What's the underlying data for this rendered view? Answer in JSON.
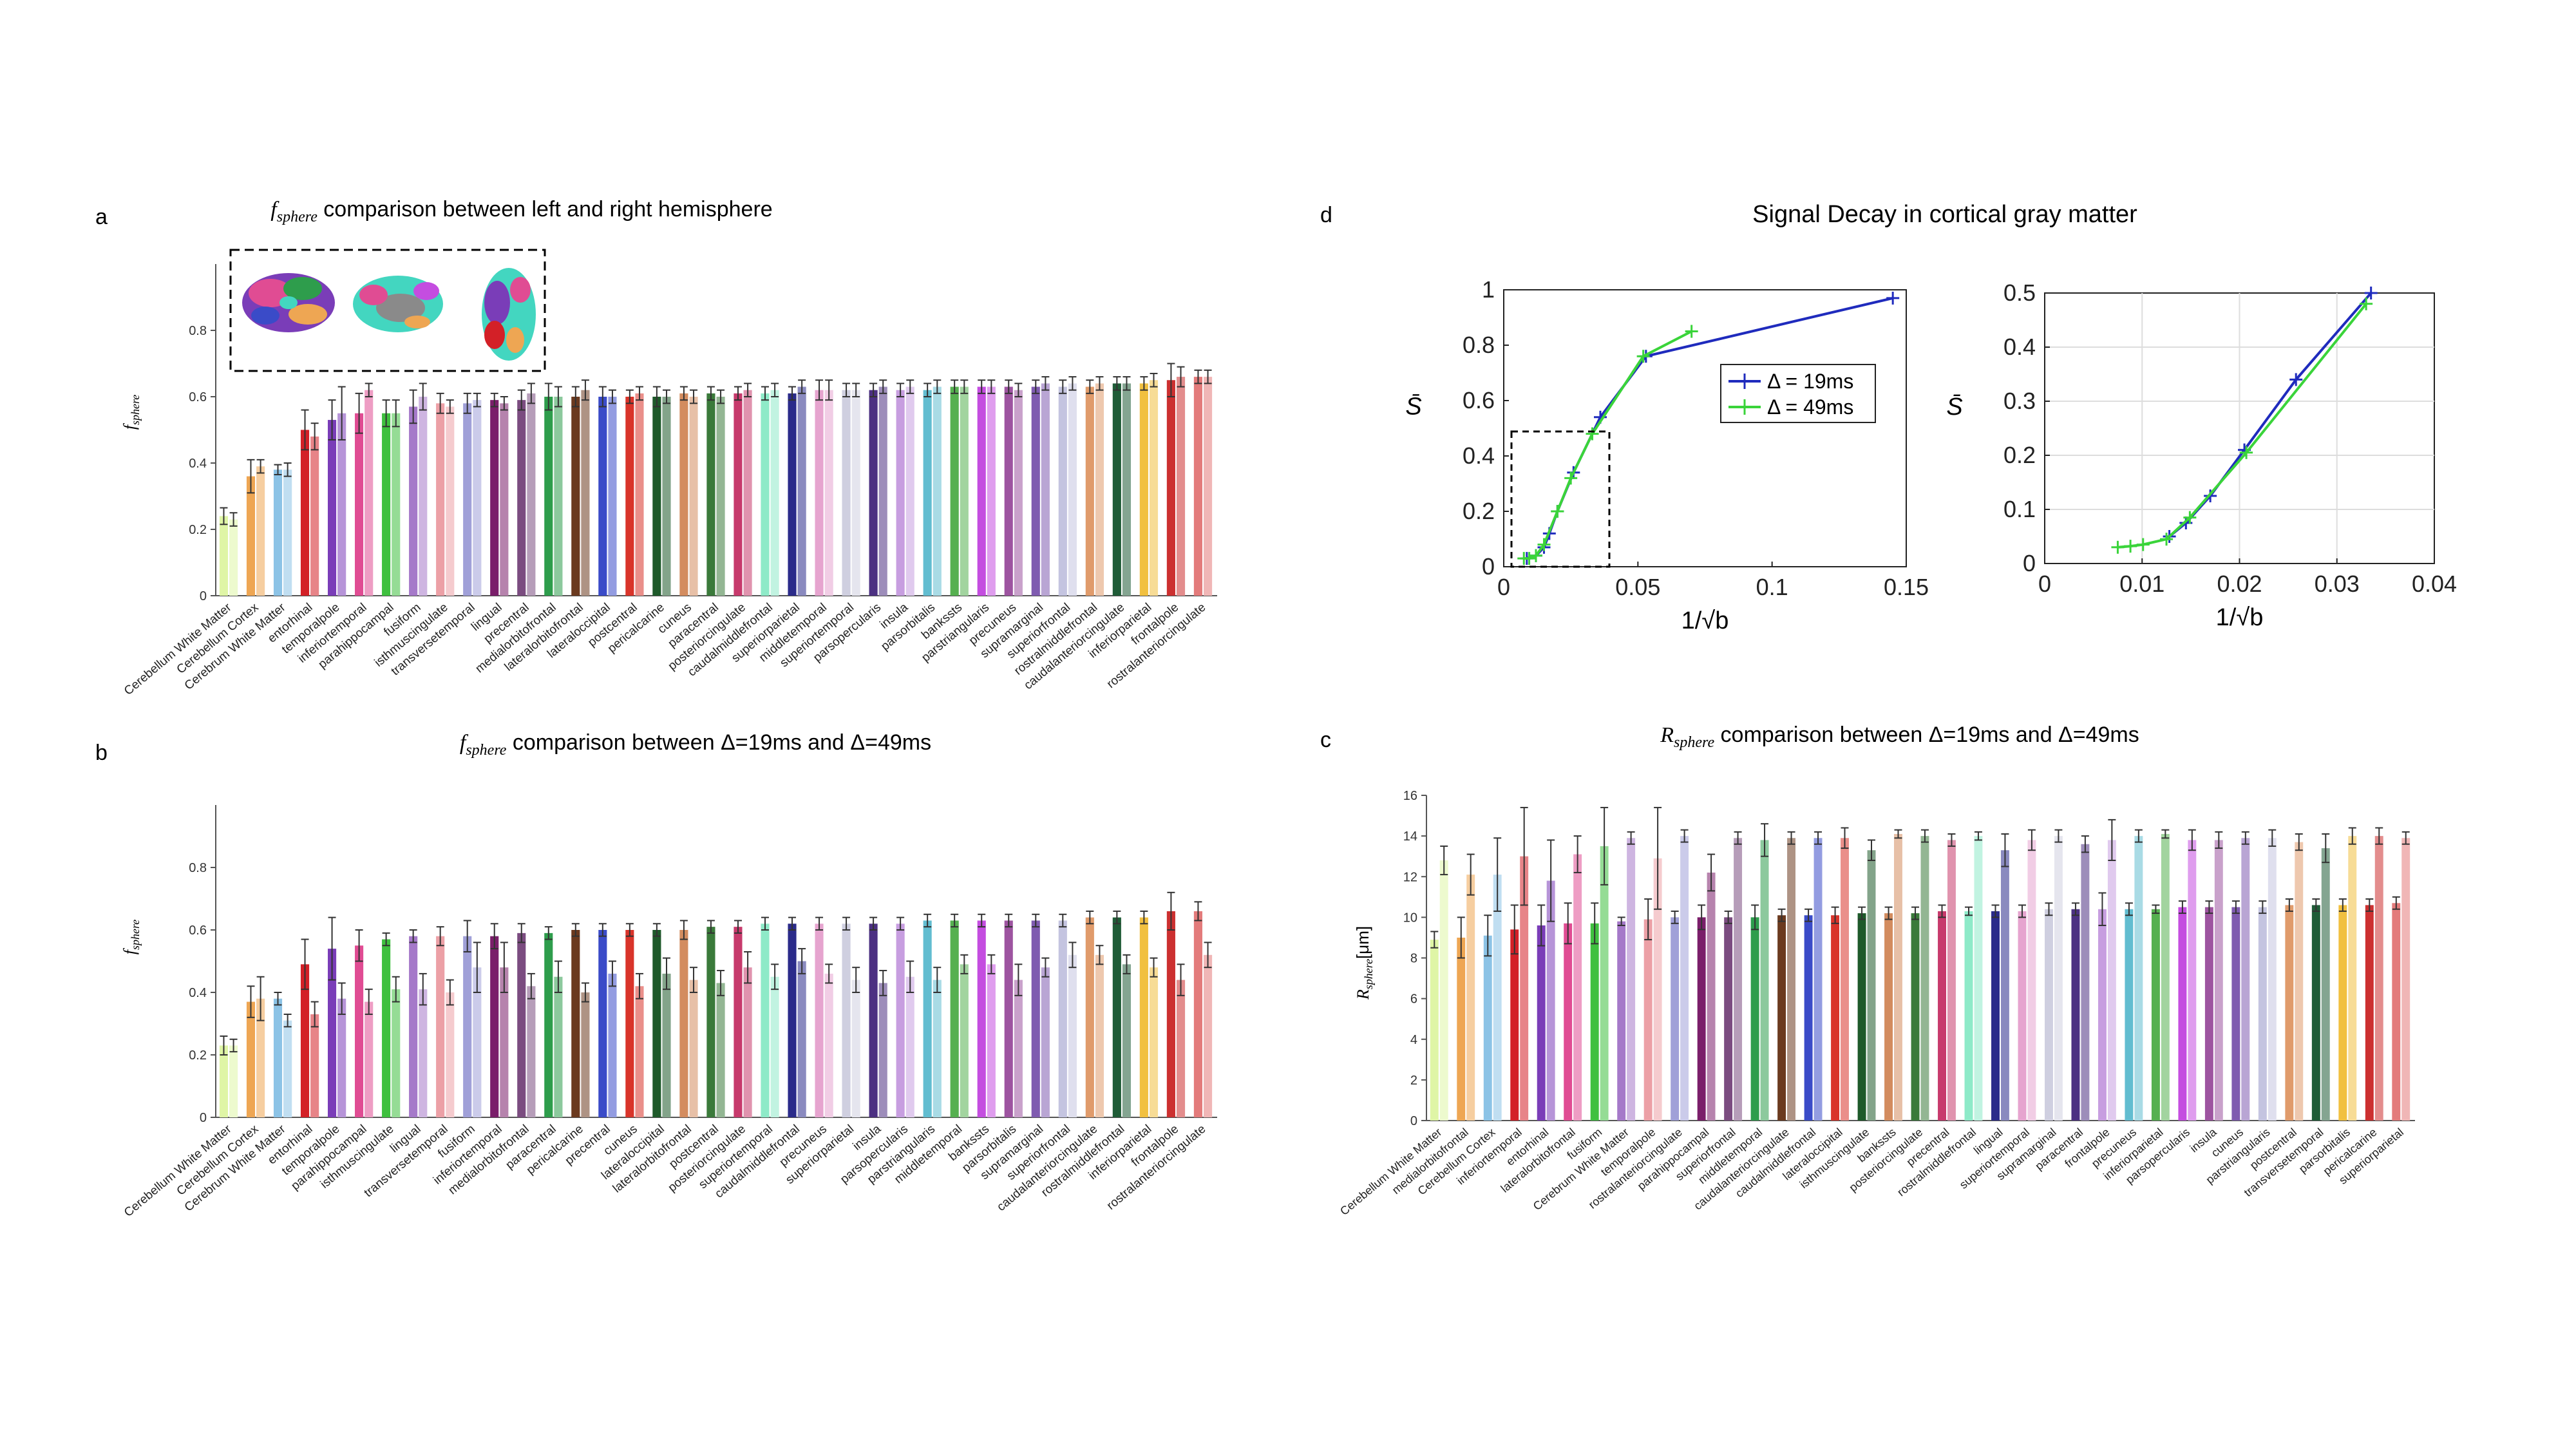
{
  "palette": [
    "#dff5a6",
    "#eea653",
    "#8cc3e6",
    "#d32027",
    "#7a3db8",
    "#e04c93",
    "#3fc03f",
    "#a579c9",
    "#eca0a6",
    "#a0a0d8",
    "#7a1e6a",
    "#7b4c80",
    "#2e9d4c",
    "#6b3a1f",
    "#3a4bc8",
    "#d9342a",
    "#1e5a2a",
    "#d38c5f",
    "#3a7a3a",
    "#c73a6c",
    "#8eeac8",
    "#2b2b8a",
    "#e6a4cf",
    "#cfcfe0",
    "#4c3082",
    "#c79ee0",
    "#62bdd0",
    "#56b050",
    "#c44de0",
    "#9d54a0",
    "#7f5bb0",
    "#c4c4e0",
    "#e09b6b",
    "#1f5c37",
    "#f1c040",
    "#cc3030",
    "#e37b7b",
    "#6d5f3f",
    "#43d6c0",
    "#7c2a88",
    "#e070d0",
    "#5a2b8a"
  ],
  "panel_a": {
    "panel_label": "a",
    "title_sym": "f",
    "title_sub": "sphere",
    "title_rest": " comparison between left and right hemisphere",
    "ylabel_sym": "f",
    "ylabel_sub": "sphere"
  },
  "panel_b": {
    "panel_label": "b",
    "title_sym": "f",
    "title_sub": "sphere",
    "title_rest": " comparison between Δ=19ms and Δ=49ms",
    "ylabel_sym": "f",
    "ylabel_sub": "sphere"
  },
  "panel_c": {
    "panel_label": "c",
    "title_sym": "R",
    "title_sub": "sphere",
    "title_rest": " comparison between Δ=19ms and Δ=49ms",
    "ylabel_sym": "R",
    "ylabel_sub": "sphere",
    "ylabel_unit": "[μm]"
  },
  "panel_d": {
    "panel_label": "d",
    "title": "Signal Decay in cortical gray matter",
    "ylabel": "S̄",
    "xlabel": "1/√b",
    "legend": [
      "Δ = 19ms",
      "Δ = 49ms"
    ],
    "series_colors": [
      "#1f2bbd",
      "#3ad43a"
    ]
  },
  "chart_data": [
    {
      "type": "bar",
      "panel": "a",
      "ylim": [
        0,
        1
      ],
      "yticks": [
        "0",
        "0.2",
        "0.4",
        "0.6",
        "0.8"
      ],
      "grouped": true,
      "categories": [
        "Cerebellum White Matter",
        "Cerebellum Cortex",
        "Cerebrum White Matter",
        "entorhinal",
        "temporalpole",
        "inferiortemporal",
        "parahippocampal",
        "fusiform",
        "isthmuscingulate",
        "transversetemporal",
        "lingual",
        "precentral",
        "medialorbitofrontal",
        "lateralorbitofrontal",
        "lateraloccipital",
        "postcentral",
        "pericalcarine",
        "cuneus",
        "paracentral",
        "posteriorcingulate",
        "caudalmiddlefrontal",
        "superiorparietal",
        "middletemporal",
        "superiortemporal",
        "parsopercularis",
        "insula",
        "parsorbitalis",
        "bankssts",
        "parstriangularis",
        "precuneus",
        "supramarginal",
        "superiorfrontal",
        "rostralmiddlefrontal",
        "caudalanteriorcingulate",
        "inferiorparietal",
        "frontalpole",
        "rostralanteriorcingulate"
      ],
      "series": [
        {
          "values": [
            0.24,
            0.36,
            0.38,
            0.5,
            0.53,
            0.55,
            0.55,
            0.57,
            0.58,
            0.58,
            0.59,
            0.59,
            0.6,
            0.6,
            0.6,
            0.6,
            0.6,
            0.61,
            0.61,
            0.61,
            0.61,
            0.61,
            0.62,
            0.62,
            0.62,
            0.62,
            0.62,
            0.63,
            0.63,
            0.63,
            0.63,
            0.63,
            0.63,
            0.64,
            0.64,
            0.65,
            0.66
          ],
          "errors": [
            0.025,
            0.05,
            0.015,
            0.06,
            0.06,
            0.06,
            0.04,
            0.05,
            0.03,
            0.03,
            0.02,
            0.03,
            0.04,
            0.03,
            0.03,
            0.02,
            0.03,
            0.02,
            0.02,
            0.02,
            0.02,
            0.02,
            0.03,
            0.02,
            0.02,
            0.02,
            0.02,
            0.02,
            0.02,
            0.02,
            0.02,
            0.02,
            0.02,
            0.02,
            0.02,
            0.05,
            0.02
          ]
        },
        {
          "values": [
            0.23,
            0.39,
            0.38,
            0.48,
            0.55,
            0.62,
            0.55,
            0.6,
            0.57,
            0.59,
            0.58,
            0.61,
            0.6,
            0.62,
            0.6,
            0.61,
            0.6,
            0.6,
            0.6,
            0.62,
            0.62,
            0.63,
            0.62,
            0.62,
            0.63,
            0.63,
            0.63,
            0.63,
            0.63,
            0.62,
            0.64,
            0.64,
            0.64,
            0.64,
            0.65,
            0.66,
            0.66
          ],
          "errors": [
            0.02,
            0.02,
            0.02,
            0.04,
            0.08,
            0.02,
            0.04,
            0.04,
            0.02,
            0.02,
            0.02,
            0.03,
            0.03,
            0.03,
            0.02,
            0.02,
            0.02,
            0.02,
            0.02,
            0.02,
            0.02,
            0.02,
            0.03,
            0.02,
            0.02,
            0.02,
            0.02,
            0.02,
            0.02,
            0.02,
            0.02,
            0.02,
            0.02,
            0.02,
            0.02,
            0.03,
            0.02
          ]
        }
      ]
    },
    {
      "type": "bar",
      "panel": "b",
      "ylim": [
        0,
        1
      ],
      "yticks": [
        "0",
        "0.2",
        "0.4",
        "0.6",
        "0.8"
      ],
      "grouped": true,
      "categories": [
        "Cerebellum White Matter",
        "Cerebellum Cortex",
        "Cerebrum White Matter",
        "entorhinal",
        "temporalpole",
        "parahippocampal",
        "isthmuscingulate",
        "lingual",
        "transversetemporal",
        "fusiform",
        "inferiortemporal",
        "medialorbitofrontal",
        "paracentral",
        "pericalcarine",
        "precentral",
        "cuneus",
        "lateraloccipital",
        "lateralorbitofrontal",
        "postcentral",
        "posteriorcingulate",
        "superiortemporal",
        "caudalmiddlefrontal",
        "precuneus",
        "superiorparietal",
        "insula",
        "parsopercularis",
        "parstriangularis",
        "middletemporal",
        "bankssts",
        "parsorbitalis",
        "supramarginal",
        "superiorfrontal",
        "caudalanteriorcingulate",
        "rostralmiddlefrontal",
        "inferiorparietal",
        "frontalpole",
        "rostralanteriorcingulate"
      ],
      "series": [
        {
          "values": [
            0.23,
            0.37,
            0.38,
            0.49,
            0.54,
            0.55,
            0.57,
            0.58,
            0.58,
            0.58,
            0.58,
            0.59,
            0.59,
            0.6,
            0.6,
            0.6,
            0.6,
            0.6,
            0.61,
            0.61,
            0.62,
            0.62,
            0.62,
            0.62,
            0.62,
            0.62,
            0.63,
            0.63,
            0.63,
            0.63,
            0.63,
            0.63,
            0.64,
            0.64,
            0.64,
            0.66,
            0.66
          ],
          "errors": [
            0.03,
            0.05,
            0.02,
            0.08,
            0.1,
            0.05,
            0.02,
            0.02,
            0.03,
            0.05,
            0.04,
            0.03,
            0.02,
            0.02,
            0.02,
            0.02,
            0.02,
            0.03,
            0.02,
            0.02,
            0.02,
            0.02,
            0.02,
            0.02,
            0.02,
            0.02,
            0.02,
            0.02,
            0.02,
            0.02,
            0.02,
            0.02,
            0.02,
            0.02,
            0.02,
            0.06,
            0.03
          ]
        },
        {
          "values": [
            0.23,
            0.38,
            0.31,
            0.33,
            0.38,
            0.37,
            0.41,
            0.41,
            0.4,
            0.48,
            0.48,
            0.42,
            0.45,
            0.4,
            0.46,
            0.42,
            0.46,
            0.44,
            0.43,
            0.48,
            0.45,
            0.5,
            0.46,
            0.44,
            0.43,
            0.45,
            0.44,
            0.49,
            0.49,
            0.44,
            0.48,
            0.52,
            0.52,
            0.49,
            0.48,
            0.44,
            0.52
          ],
          "errors": [
            0.02,
            0.07,
            0.02,
            0.04,
            0.05,
            0.04,
            0.04,
            0.05,
            0.04,
            0.08,
            0.08,
            0.04,
            0.05,
            0.03,
            0.04,
            0.04,
            0.05,
            0.04,
            0.04,
            0.05,
            0.04,
            0.04,
            0.03,
            0.04,
            0.04,
            0.05,
            0.04,
            0.03,
            0.03,
            0.05,
            0.03,
            0.04,
            0.03,
            0.03,
            0.03,
            0.05,
            0.04
          ]
        }
      ]
    },
    {
      "type": "bar",
      "panel": "c",
      "ylim": [
        0,
        16
      ],
      "yticks": [
        "0",
        "2",
        "4",
        "6",
        "8",
        "10",
        "12",
        "14",
        "16"
      ],
      "grouped": true,
      "categories": [
        "Cerebellum White Matter",
        "medialorbitofrontal",
        "Cerebellum Cortex",
        "inferiortemporal",
        "entorhinal",
        "lateralorbitofrontal",
        "fusiform",
        "Cerebrum White Matter",
        "temporalpole",
        "rostralanteriorcingulate",
        "parahippocampal",
        "superiorfrontal",
        "middletemporal",
        "caudalanteriorcingulate",
        "caudalmiddlefrontal",
        "lateraloccipital",
        "isthmuscingulate",
        "bankssts",
        "posteriorcingulate",
        "precentral",
        "rostralmiddlefrontal",
        "lingual",
        "superiortemporal",
        "supramarginal",
        "paracentral",
        "frontalpole",
        "precuneus",
        "inferiorparietal",
        "parsopercularis",
        "insula",
        "cuneus",
        "parstriangularis",
        "postcentral",
        "transversetemporal",
        "parsorbitalis",
        "pericalcarine",
        "superiorparietal"
      ],
      "series": [
        {
          "values": [
            8.9,
            9.0,
            9.1,
            9.4,
            9.6,
            9.7,
            9.7,
            9.8,
            9.9,
            10.0,
            10.0,
            10.0,
            10.0,
            10.1,
            10.1,
            10.1,
            10.2,
            10.2,
            10.2,
            10.3,
            10.3,
            10.3,
            10.3,
            10.4,
            10.4,
            10.4,
            10.4,
            10.4,
            10.5,
            10.5,
            10.5,
            10.5,
            10.6,
            10.6,
            10.6,
            10.6,
            10.7
          ],
          "errors": [
            0.4,
            1.0,
            1.0,
            1.2,
            1.0,
            1.0,
            1.0,
            0.2,
            1.0,
            0.3,
            0.6,
            0.3,
            0.6,
            0.3,
            0.3,
            0.4,
            0.3,
            0.3,
            0.3,
            0.3,
            0.2,
            0.3,
            0.3,
            0.3,
            0.3,
            0.8,
            0.3,
            0.2,
            0.3,
            0.3,
            0.3,
            0.3,
            0.3,
            0.3,
            0.3,
            0.3,
            0.3
          ]
        },
        {
          "values": [
            12.8,
            12.1,
            12.1,
            13.0,
            11.8,
            13.1,
            13.5,
            13.9,
            12.9,
            14.0,
            12.2,
            13.9,
            13.8,
            13.9,
            13.9,
            13.9,
            13.3,
            14.1,
            14.0,
            13.8,
            14.0,
            13.3,
            13.8,
            14.0,
            13.6,
            13.8,
            14.0,
            14.1,
            13.8,
            13.8,
            13.9,
            13.9,
            13.7,
            13.4,
            14.0,
            14.0,
            13.9
          ],
          "errors": [
            0.7,
            1.0,
            1.8,
            2.4,
            2.0,
            0.9,
            1.9,
            0.3,
            2.5,
            0.3,
            0.9,
            0.3,
            0.8,
            0.3,
            0.3,
            0.5,
            0.5,
            0.2,
            0.3,
            0.3,
            0.2,
            0.8,
            0.5,
            0.3,
            0.4,
            1.0,
            0.3,
            0.2,
            0.5,
            0.4,
            0.3,
            0.4,
            0.4,
            0.7,
            0.4,
            0.4,
            0.3
          ]
        }
      ]
    },
    {
      "type": "line",
      "panel": "d-left",
      "xlim": [
        0,
        0.15
      ],
      "ylim": [
        0,
        1
      ],
      "xticks": [
        "0",
        "0.05",
        "0.1",
        "0.15"
      ],
      "yticks": [
        "0",
        "0.2",
        "0.4",
        "0.6",
        "0.8",
        "1"
      ],
      "xlabel": "1/√b",
      "ylabel": "S̄",
      "legend_position": "middle-right",
      "series": [
        {
          "name": "Δ = 19ms",
          "x": [
            0.0086,
            0.012,
            0.015,
            0.017,
            0.02,
            0.026,
            0.036,
            0.053,
            0.145
          ],
          "y": [
            0.03,
            0.04,
            0.07,
            0.12,
            0.2,
            0.34,
            0.54,
            0.76,
            0.97
          ]
        },
        {
          "name": "Δ = 49ms",
          "x": [
            0.0075,
            0.0095,
            0.012,
            0.015,
            0.02,
            0.025,
            0.033,
            0.052,
            0.07
          ],
          "y": [
            0.03,
            0.03,
            0.04,
            0.08,
            0.2,
            0.32,
            0.48,
            0.76,
            0.85
          ]
        }
      ]
    },
    {
      "type": "line",
      "panel": "d-right",
      "xlim": [
        0,
        0.04
      ],
      "ylim": [
        0,
        0.5
      ],
      "xticks": [
        "0",
        "0.01",
        "0.02",
        "0.03",
        "0.04"
      ],
      "yticks": [
        "0",
        "0.1",
        "0.2",
        "0.3",
        "0.4",
        "0.5"
      ],
      "xlabel": "1/√b",
      "ylabel": "S̄",
      "series": [
        {
          "name": "Δ = 19ms",
          "x": [
            0.0128,
            0.0145,
            0.017,
            0.0205,
            0.0258,
            0.0335
          ],
          "y": [
            0.05,
            0.075,
            0.125,
            0.21,
            0.34,
            0.5
          ]
        },
        {
          "name": "Δ = 49ms",
          "x": [
            0.0075,
            0.0088,
            0.0101,
            0.0125,
            0.0149,
            0.0207,
            0.033
          ],
          "y": [
            0.03,
            0.032,
            0.035,
            0.045,
            0.085,
            0.205,
            0.48
          ]
        }
      ]
    }
  ]
}
